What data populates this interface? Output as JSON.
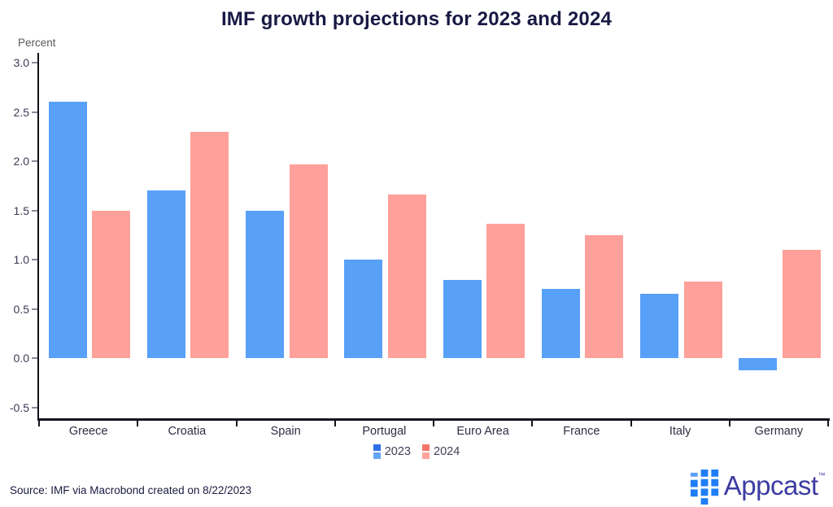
{
  "title": "IMF growth projections for 2023 and 2024",
  "axis": {
    "unit_label": "Percent"
  },
  "source": "Source: IMF via Macrobond created on 8/22/2023",
  "legend": [
    {
      "label": "2023",
      "color_top": "#2e6fe8",
      "color_bottom": "#64a5f8"
    },
    {
      "label": "2024",
      "color_top": "#f4766b",
      "color_bottom": "#ffa49d"
    }
  ],
  "logo": {
    "text": "Appcast",
    "tm": "™",
    "mark_color": "#1f7ef6",
    "mark_color_light": "#5c9ff8",
    "text_color": "#3c3ca2"
  },
  "colors": {
    "bar_2023": "#58a0f8",
    "bar_2024": "#ffa09a",
    "title": "#191945",
    "axis_line": "#14141e",
    "tick_label": "#3b3b55",
    "category_label": "#2e2e44",
    "unit_label": "#595959",
    "source": "#1a1a40"
  },
  "chart_data": {
    "type": "bar",
    "categories": [
      "Greece",
      "Croatia",
      "Spain",
      "Portugal",
      "Euro Area",
      "France",
      "Italy",
      "Germany"
    ],
    "series": [
      {
        "name": "2023",
        "color": "#58a0f8",
        "values": [
          2.6,
          1.7,
          1.5,
          1.0,
          0.79,
          0.7,
          0.65,
          -0.12
        ]
      },
      {
        "name": "2024",
        "color": "#ffa09a",
        "values": [
          1.5,
          2.3,
          1.97,
          1.66,
          1.36,
          1.25,
          0.78,
          1.1
        ]
      }
    ],
    "title": "IMF growth projections for 2023 and 2024",
    "xlabel": "",
    "ylabel": "Percent",
    "ylim": [
      -0.5,
      3.0
    ],
    "ytick_step": 0.5,
    "grid": false,
    "legend_position": "bottom"
  }
}
